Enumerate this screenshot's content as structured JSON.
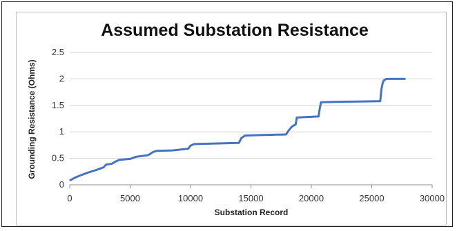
{
  "chart_data": {
    "type": "line",
    "title": "Assumed Substation Resistance",
    "xlabel": "Substation Record",
    "ylabel": "Grounding Resistance (Ohms)",
    "xlim": [
      0,
      30000
    ],
    "ylim": [
      0,
      2.5
    ],
    "x_ticks": [
      "0",
      "5000",
      "10000",
      "15000",
      "20000",
      "25000",
      "30000"
    ],
    "y_ticks": [
      "0",
      "0.5",
      "1",
      "1.5",
      "2",
      "2.5"
    ],
    "x_tick_values": [
      0,
      5000,
      10000,
      15000,
      20000,
      25000,
      30000
    ],
    "y_tick_values": [
      0,
      0.5,
      1,
      1.5,
      2,
      2.5
    ],
    "grid": "horizontal",
    "legend": "none",
    "series": [
      {
        "color": "#4472C4",
        "points": [
          [
            0,
            0.08
          ],
          [
            300,
            0.12
          ],
          [
            800,
            0.17
          ],
          [
            1500,
            0.23
          ],
          [
            2200,
            0.28
          ],
          [
            2800,
            0.33
          ],
          [
            3000,
            0.38
          ],
          [
            3500,
            0.4
          ],
          [
            3800,
            0.44
          ],
          [
            4100,
            0.47
          ],
          [
            5000,
            0.49
          ],
          [
            5500,
            0.53
          ],
          [
            6500,
            0.56
          ],
          [
            6900,
            0.62
          ],
          [
            7200,
            0.64
          ],
          [
            8500,
            0.65
          ],
          [
            9800,
            0.68
          ],
          [
            10000,
            0.74
          ],
          [
            10300,
            0.77
          ],
          [
            12000,
            0.78
          ],
          [
            14000,
            0.79
          ],
          [
            14200,
            0.88
          ],
          [
            14500,
            0.93
          ],
          [
            16000,
            0.94
          ],
          [
            17900,
            0.95
          ],
          [
            18100,
            1.02
          ],
          [
            18400,
            1.1
          ],
          [
            18700,
            1.14
          ],
          [
            18800,
            1.27
          ],
          [
            19500,
            1.28
          ],
          [
            20600,
            1.29
          ],
          [
            20700,
            1.45
          ],
          [
            20800,
            1.56
          ],
          [
            23000,
            1.57
          ],
          [
            25700,
            1.58
          ],
          [
            25800,
            1.8
          ],
          [
            25900,
            1.92
          ],
          [
            26000,
            1.97
          ],
          [
            26200,
            2.0
          ],
          [
            27800,
            2.0
          ]
        ]
      }
    ]
  }
}
